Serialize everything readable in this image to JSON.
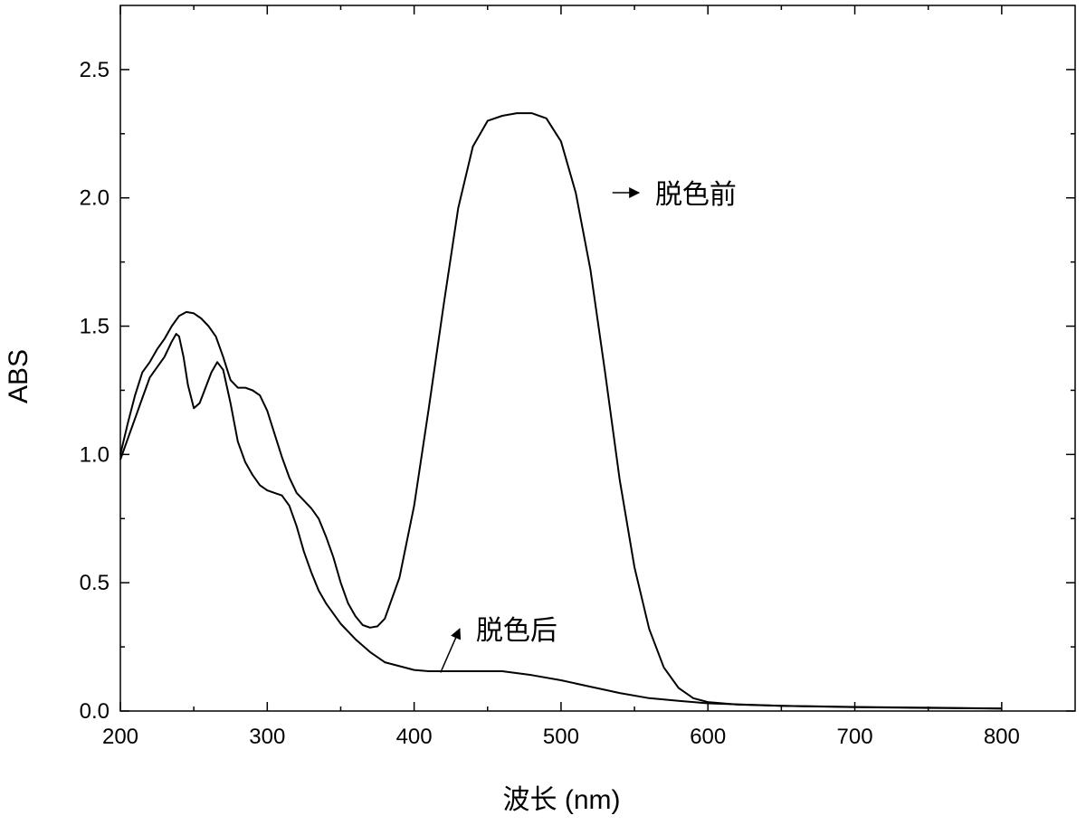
{
  "chart_data": {
    "type": "line",
    "title": "",
    "xlabel": "波长 (nm)",
    "ylabel": "ABS",
    "xlim": [
      200,
      850
    ],
    "ylim": [
      0,
      2.75
    ],
    "x_ticks": [
      200,
      300,
      400,
      500,
      600,
      700,
      800
    ],
    "x_tick_labels": [
      "200",
      "300",
      "400",
      "500",
      "600",
      "700",
      "800"
    ],
    "y_ticks": [
      0.0,
      0.5,
      1.0,
      1.5,
      2.0,
      2.5
    ],
    "y_tick_labels": [
      "0.0",
      "0.5",
      "1.0",
      "1.5",
      "2.0",
      "2.5"
    ],
    "grid": false,
    "legend": "none",
    "series": [
      {
        "name": "脱色前",
        "x": [
          200,
          205,
          210,
          215,
          220,
          225,
          230,
          235,
          240,
          245,
          250,
          255,
          260,
          265,
          270,
          275,
          280,
          285,
          290,
          295,
          300,
          305,
          310,
          315,
          320,
          325,
          330,
          335,
          340,
          345,
          350,
          355,
          360,
          365,
          370,
          375,
          380,
          390,
          400,
          410,
          420,
          430,
          440,
          450,
          460,
          470,
          480,
          490,
          500,
          510,
          520,
          530,
          540,
          550,
          560,
          570,
          580,
          590,
          600,
          620,
          650,
          700,
          750,
          800
        ],
        "y": [
          1.0,
          1.12,
          1.23,
          1.32,
          1.36,
          1.41,
          1.45,
          1.5,
          1.54,
          1.555,
          1.55,
          1.53,
          1.5,
          1.46,
          1.38,
          1.29,
          1.26,
          1.26,
          1.25,
          1.23,
          1.17,
          1.08,
          0.99,
          0.91,
          0.85,
          0.82,
          0.79,
          0.75,
          0.68,
          0.6,
          0.5,
          0.42,
          0.37,
          0.335,
          0.325,
          0.33,
          0.36,
          0.52,
          0.8,
          1.18,
          1.58,
          1.96,
          2.2,
          2.3,
          2.32,
          2.33,
          2.33,
          2.31,
          2.22,
          2.02,
          1.72,
          1.32,
          0.9,
          0.56,
          0.32,
          0.17,
          0.09,
          0.05,
          0.035,
          0.025,
          0.02,
          0.016,
          0.013,
          0.01
        ]
      },
      {
        "name": "脱色后",
        "x": [
          200,
          205,
          210,
          215,
          220,
          225,
          230,
          235,
          238,
          240,
          243,
          246,
          250,
          254,
          258,
          262,
          266,
          270,
          275,
          280,
          285,
          290,
          295,
          300,
          305,
          310,
          315,
          320,
          325,
          330,
          335,
          340,
          345,
          350,
          355,
          360,
          370,
          380,
          390,
          400,
          410,
          420,
          440,
          460,
          480,
          500,
          520,
          540,
          560,
          580,
          600,
          650,
          700,
          750,
          800
        ],
        "y": [
          0.98,
          1.06,
          1.14,
          1.22,
          1.3,
          1.34,
          1.38,
          1.44,
          1.47,
          1.46,
          1.38,
          1.27,
          1.18,
          1.2,
          1.26,
          1.32,
          1.36,
          1.33,
          1.2,
          1.05,
          0.97,
          0.92,
          0.88,
          0.86,
          0.85,
          0.84,
          0.8,
          0.72,
          0.62,
          0.54,
          0.47,
          0.42,
          0.38,
          0.34,
          0.31,
          0.28,
          0.23,
          0.19,
          0.175,
          0.16,
          0.155,
          0.155,
          0.155,
          0.155,
          0.14,
          0.12,
          0.095,
          0.07,
          0.05,
          0.04,
          0.03,
          0.02,
          0.015,
          0.012,
          0.01
        ]
      }
    ],
    "annotations": [
      {
        "text": "脱色前",
        "target_x": 535,
        "target_y": 2.02,
        "text_x": 553,
        "text_y": 2.02
      },
      {
        "text": "脱色后",
        "target_x": 418,
        "target_y": 0.15,
        "text_x": 431,
        "text_y": 0.32
      }
    ]
  }
}
